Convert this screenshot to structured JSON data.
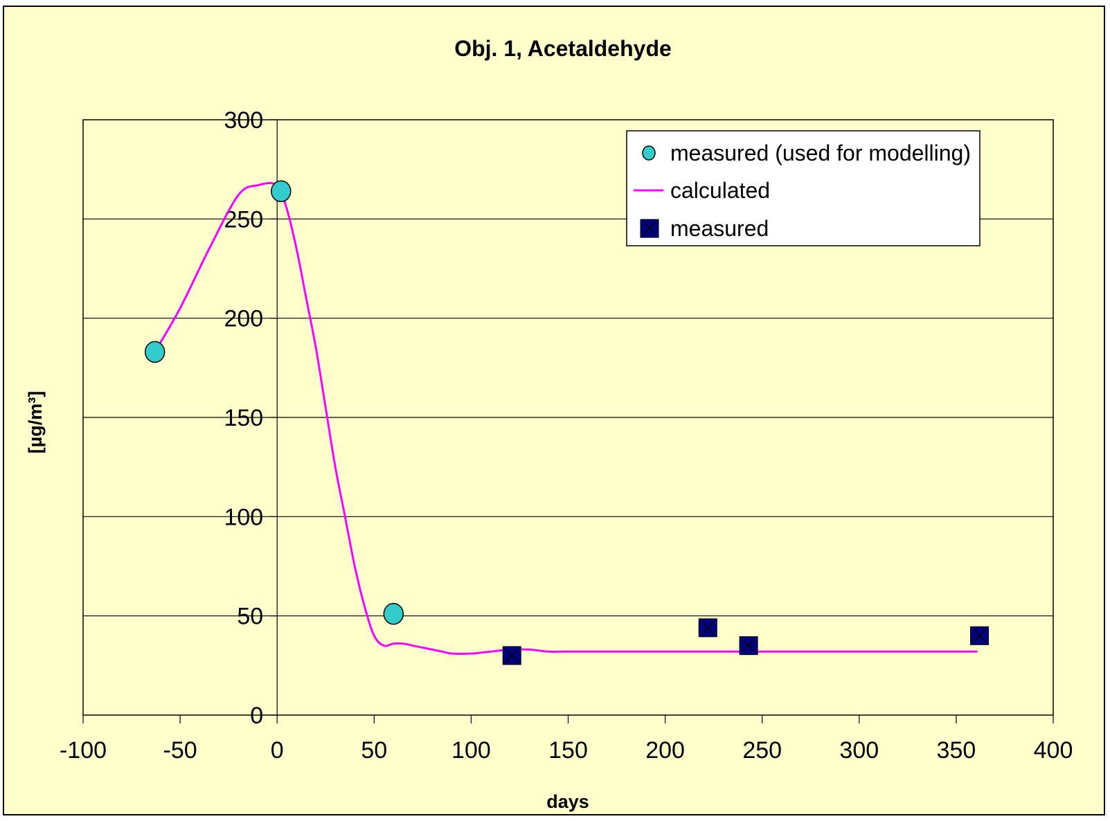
{
  "chart_data": {
    "type": "scatter",
    "title": "Obj. 1, Acetaldehyde",
    "xlabel": "days",
    "ylabel": "[µg/m³]",
    "xlim": [
      -100,
      400
    ],
    "ylim": [
      0,
      300
    ],
    "x_ticks": [
      -100,
      -50,
      0,
      50,
      100,
      150,
      200,
      250,
      300,
      350,
      400
    ],
    "y_ticks": [
      0,
      50,
      100,
      150,
      200,
      250,
      300
    ],
    "grid": "horizontal",
    "legend_position": "top-right",
    "series": [
      {
        "name": "measured (used for modelling)",
        "kind": "points",
        "marker": "circle",
        "color": "#33cccc",
        "x": [
          -63,
          2,
          60
        ],
        "y": [
          183,
          264,
          51
        ]
      },
      {
        "name": "calculated",
        "kind": "line",
        "color": "#ff00ff",
        "x": [
          -63,
          -50,
          -35,
          -20,
          -10,
          0,
          5,
          10,
          15,
          20,
          25,
          30,
          35,
          40,
          45,
          50,
          55,
          60,
          65,
          70,
          75,
          80,
          85,
          90,
          100,
          110,
          120,
          130,
          140,
          150,
          200,
          250,
          300,
          361
        ],
        "y": [
          183,
          205,
          235,
          262,
          267,
          267,
          255,
          235,
          210,
          185,
          155,
          125,
          100,
          75,
          55,
          40,
          35,
          36,
          36,
          35,
          34,
          33,
          32,
          31,
          31,
          32,
          33,
          33,
          32,
          32,
          32,
          32,
          32,
          32
        ]
      },
      {
        "name": "measured",
        "kind": "points",
        "marker": "square-x",
        "color": "#000080",
        "x": [
          121,
          222,
          243,
          362
        ],
        "y": [
          30,
          44,
          35,
          40
        ]
      }
    ]
  }
}
